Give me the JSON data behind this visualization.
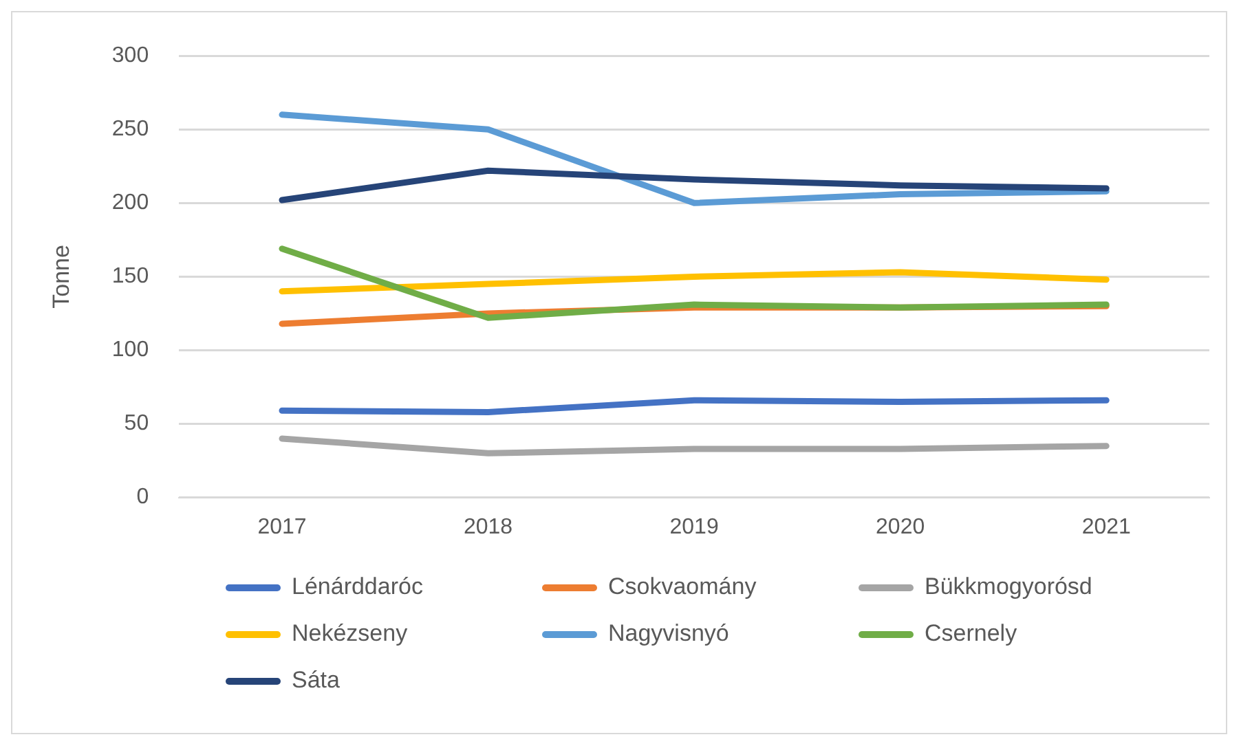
{
  "chart_data": {
    "type": "line",
    "ylabel": "Tonne",
    "categories": [
      "2017",
      "2018",
      "2019",
      "2020",
      "2021"
    ],
    "series": [
      {
        "name": "Lénárddaróc",
        "color": "#4472c4",
        "values": [
          59,
          58,
          66,
          65,
          66
        ]
      },
      {
        "name": "Csokvaomány",
        "color": "#ed7d31",
        "values": [
          118,
          125,
          129,
          129,
          130
        ]
      },
      {
        "name": "Bükkmogyorósd",
        "color": "#a5a5a5",
        "values": [
          40,
          30,
          33,
          33,
          35
        ]
      },
      {
        "name": "Nekézseny",
        "color": "#ffc000",
        "values": [
          140,
          145,
          150,
          153,
          148
        ]
      },
      {
        "name": "Nagyvisnyó",
        "color": "#5b9bd5",
        "values": [
          260,
          250,
          200,
          206,
          208
        ]
      },
      {
        "name": "Csernely",
        "color": "#70ad47",
        "values": [
          169,
          122,
          131,
          129,
          131
        ]
      },
      {
        "name": "Sáta",
        "color": "#264478",
        "values": [
          202,
          222,
          216,
          212,
          210
        ]
      }
    ],
    "ylim": [
      0,
      300
    ],
    "yticks": [
      0,
      50,
      100,
      150,
      200,
      250,
      300
    ],
    "grid": "y",
    "legend": "bottom",
    "marker": "none",
    "line_style": "solid"
  }
}
